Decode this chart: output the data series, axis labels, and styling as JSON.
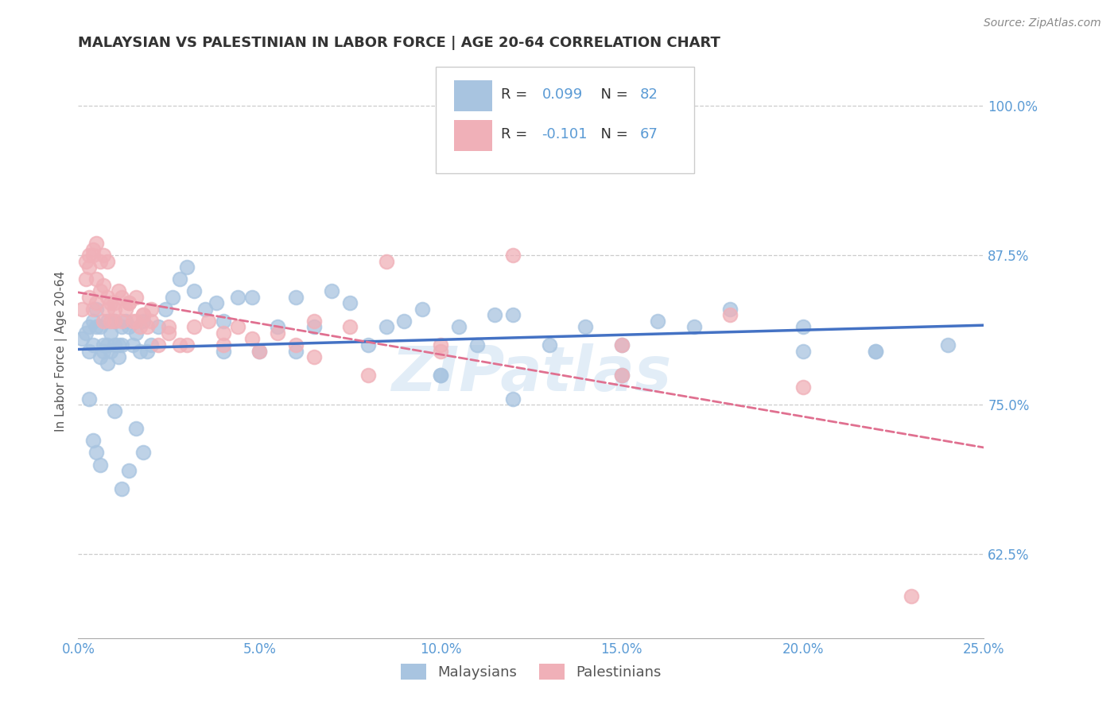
{
  "title": "MALAYSIAN VS PALESTINIAN IN LABOR FORCE | AGE 20-64 CORRELATION CHART",
  "source": "Source: ZipAtlas.com",
  "ylabel_label": "In Labor Force | Age 20-64",
  "legend_label1": "Malaysians",
  "legend_label2": "Palestinians",
  "R1": 0.099,
  "N1": 82,
  "R2": -0.101,
  "N2": 67,
  "watermark": "ZIPatlas",
  "blue_color": "#a8c4e0",
  "pink_color": "#f0b0b8",
  "line_blue": "#4472c4",
  "line_pink": "#e07090",
  "axis_color": "#5b9bd5",
  "xmin": 0.0,
  "xmax": 0.25,
  "ymin": 0.555,
  "ymax": 1.035,
  "yticks": [
    0.625,
    0.75,
    0.875,
    1.0
  ],
  "xticks": [
    0.0,
    0.05,
    0.1,
    0.15,
    0.2,
    0.25
  ],
  "blue_x": [
    0.001,
    0.002,
    0.003,
    0.003,
    0.004,
    0.004,
    0.005,
    0.005,
    0.006,
    0.006,
    0.007,
    0.007,
    0.008,
    0.008,
    0.009,
    0.009,
    0.01,
    0.01,
    0.011,
    0.011,
    0.012,
    0.012,
    0.013,
    0.014,
    0.015,
    0.016,
    0.017,
    0.018,
    0.019,
    0.02,
    0.022,
    0.024,
    0.026,
    0.028,
    0.03,
    0.032,
    0.035,
    0.038,
    0.04,
    0.044,
    0.048,
    0.05,
    0.055,
    0.06,
    0.065,
    0.07,
    0.075,
    0.08,
    0.085,
    0.09,
    0.095,
    0.1,
    0.105,
    0.11,
    0.115,
    0.12,
    0.13,
    0.14,
    0.15,
    0.16,
    0.17,
    0.18,
    0.2,
    0.22,
    0.003,
    0.004,
    0.005,
    0.006,
    0.008,
    0.01,
    0.012,
    0.014,
    0.016,
    0.018,
    0.04,
    0.06,
    0.1,
    0.12,
    0.15,
    0.2,
    0.22,
    0.24
  ],
  "blue_y": [
    0.805,
    0.81,
    0.815,
    0.795,
    0.82,
    0.8,
    0.815,
    0.83,
    0.79,
    0.815,
    0.8,
    0.795,
    0.82,
    0.8,
    0.795,
    0.81,
    0.8,
    0.82,
    0.79,
    0.8,
    0.815,
    0.8,
    0.82,
    0.815,
    0.8,
    0.81,
    0.795,
    0.82,
    0.795,
    0.8,
    0.815,
    0.83,
    0.84,
    0.855,
    0.865,
    0.845,
    0.83,
    0.835,
    0.82,
    0.84,
    0.84,
    0.795,
    0.815,
    0.84,
    0.815,
    0.845,
    0.835,
    0.8,
    0.815,
    0.82,
    0.83,
    0.775,
    0.815,
    0.8,
    0.825,
    0.825,
    0.8,
    0.815,
    0.8,
    0.82,
    0.815,
    0.83,
    0.815,
    0.795,
    0.755,
    0.72,
    0.71,
    0.7,
    0.785,
    0.745,
    0.68,
    0.695,
    0.73,
    0.71,
    0.795,
    0.795,
    0.775,
    0.755,
    0.775,
    0.795,
    0.795,
    0.8
  ],
  "pink_x": [
    0.001,
    0.002,
    0.003,
    0.003,
    0.004,
    0.004,
    0.005,
    0.005,
    0.006,
    0.007,
    0.007,
    0.008,
    0.008,
    0.009,
    0.01,
    0.01,
    0.011,
    0.012,
    0.013,
    0.014,
    0.015,
    0.016,
    0.017,
    0.018,
    0.019,
    0.02,
    0.022,
    0.025,
    0.028,
    0.032,
    0.036,
    0.04,
    0.044,
    0.048,
    0.055,
    0.06,
    0.065,
    0.075,
    0.085,
    0.1,
    0.12,
    0.15,
    0.18,
    0.002,
    0.003,
    0.004,
    0.005,
    0.006,
    0.007,
    0.008,
    0.009,
    0.01,
    0.012,
    0.014,
    0.016,
    0.018,
    0.02,
    0.025,
    0.03,
    0.04,
    0.05,
    0.065,
    0.08,
    0.1,
    0.15,
    0.2,
    0.23
  ],
  "pink_y": [
    0.83,
    0.855,
    0.84,
    0.875,
    0.88,
    0.83,
    0.855,
    0.835,
    0.845,
    0.85,
    0.82,
    0.84,
    0.83,
    0.835,
    0.83,
    0.82,
    0.845,
    0.84,
    0.83,
    0.835,
    0.82,
    0.84,
    0.815,
    0.825,
    0.815,
    0.83,
    0.8,
    0.815,
    0.8,
    0.815,
    0.82,
    0.81,
    0.815,
    0.805,
    0.81,
    0.8,
    0.82,
    0.815,
    0.87,
    0.8,
    0.875,
    0.8,
    0.825,
    0.87,
    0.865,
    0.875,
    0.885,
    0.87,
    0.875,
    0.87,
    0.82,
    0.835,
    0.82,
    0.835,
    0.82,
    0.825,
    0.82,
    0.81,
    0.8,
    0.8,
    0.795,
    0.79,
    0.775,
    0.795,
    0.775,
    0.765,
    0.59
  ]
}
